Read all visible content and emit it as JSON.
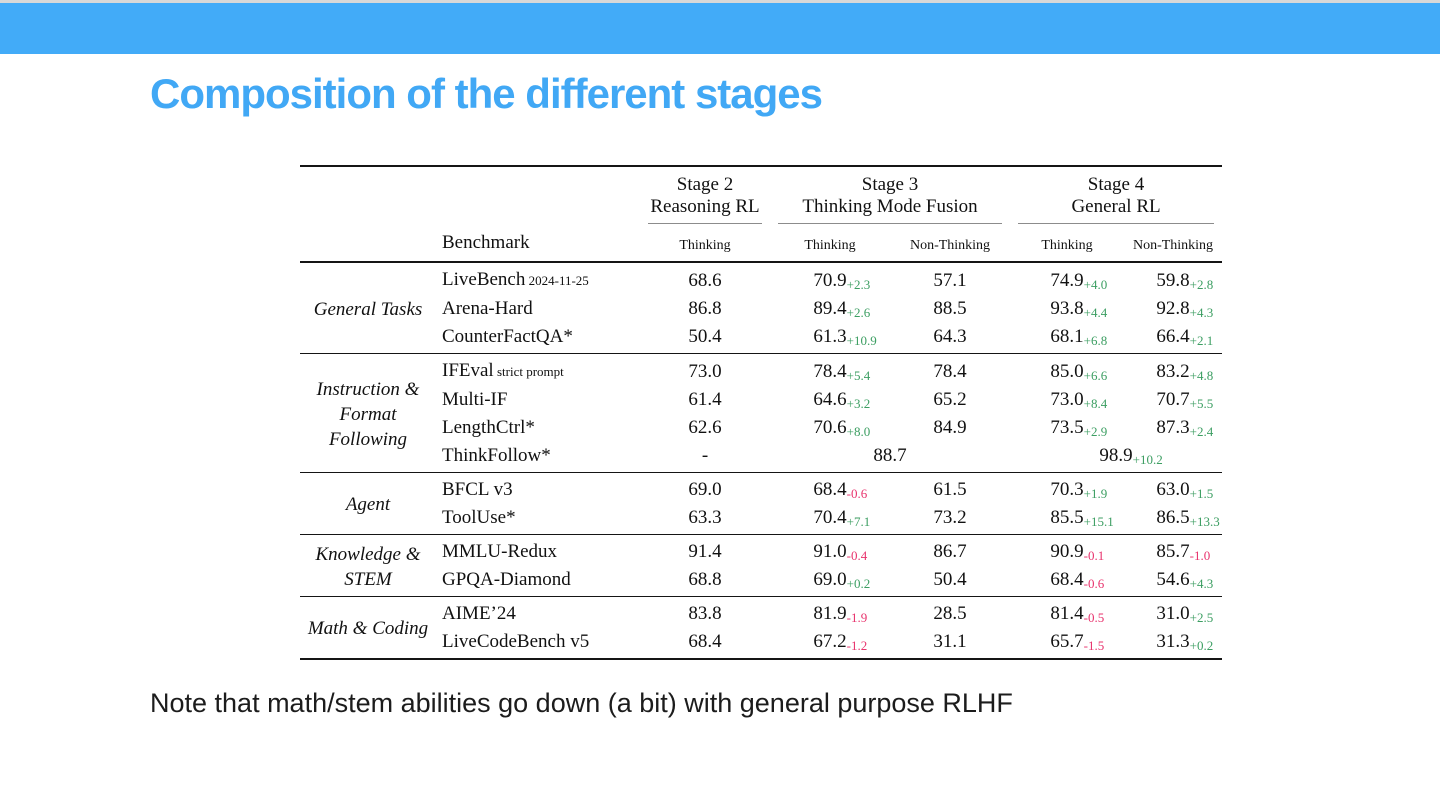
{
  "slide": {
    "title": "Composition of the different stages",
    "note": "Note that math/stem abilities go down (a bit) with general purpose RLHF"
  },
  "colors": {
    "accent_blue": "#41a8f5",
    "top_bar_blue": "#42abf8",
    "positive_delta": "#3c9e62",
    "negative_delta": "#e8336d"
  },
  "table": {
    "benchmark_header": "Benchmark",
    "stages": [
      {
        "line1": "Stage 2",
        "line2": "Reasoning RL",
        "cols": [
          "Thinking"
        ]
      },
      {
        "line1": "Stage 3",
        "line2": "Thinking Mode Fusion",
        "cols": [
          "Thinking",
          "Non-Thinking"
        ]
      },
      {
        "line1": "Stage 4",
        "line2": "General RL",
        "cols": [
          "Thinking",
          "Non-Thinking"
        ]
      }
    ],
    "groups": [
      {
        "label": "General Tasks",
        "rows": [
          {
            "benchmark": "LiveBench",
            "benchmark_sub": "2024-11-25",
            "cells": [
              {
                "v": "68.6"
              },
              {
                "v": "70.9",
                "d": "+2.3"
              },
              {
                "v": "57.1"
              },
              {
                "v": "74.9",
                "d": "+4.0"
              },
              {
                "v": "59.8",
                "d": "+2.8"
              }
            ]
          },
          {
            "benchmark": "Arena-Hard",
            "cells": [
              {
                "v": "86.8"
              },
              {
                "v": "89.4",
                "d": "+2.6"
              },
              {
                "v": "88.5"
              },
              {
                "v": "93.8",
                "d": "+4.4"
              },
              {
                "v": "92.8",
                "d": "+4.3"
              }
            ]
          },
          {
            "benchmark": "CounterFactQA*",
            "cells": [
              {
                "v": "50.4"
              },
              {
                "v": "61.3",
                "d": "+10.9"
              },
              {
                "v": "64.3"
              },
              {
                "v": "68.1",
                "d": "+6.8"
              },
              {
                "v": "66.4",
                "d": "+2.1"
              }
            ]
          }
        ]
      },
      {
        "label": "Instruction & Format Following",
        "rows": [
          {
            "benchmark": "IFEval",
            "benchmark_sub": "strict prompt",
            "cells": [
              {
                "v": "73.0"
              },
              {
                "v": "78.4",
                "d": "+5.4"
              },
              {
                "v": "78.4"
              },
              {
                "v": "85.0",
                "d": "+6.6"
              },
              {
                "v": "83.2",
                "d": "+4.8"
              }
            ]
          },
          {
            "benchmark": "Multi-IF",
            "cells": [
              {
                "v": "61.4"
              },
              {
                "v": "64.6",
                "d": "+3.2"
              },
              {
                "v": "65.2"
              },
              {
                "v": "73.0",
                "d": "+8.4"
              },
              {
                "v": "70.7",
                "d": "+5.5"
              }
            ]
          },
          {
            "benchmark": "LengthCtrl*",
            "cells": [
              {
                "v": "62.6"
              },
              {
                "v": "70.6",
                "d": "+8.0"
              },
              {
                "v": "84.9"
              },
              {
                "v": "73.5",
                "d": "+2.9"
              },
              {
                "v": "87.3",
                "d": "+2.4"
              }
            ]
          },
          {
            "benchmark": "ThinkFollow*",
            "cells": [
              {
                "v": "-"
              },
              {
                "v": "88.7",
                "span": 2
              },
              {
                "v": "98.9",
                "d": "+10.2",
                "span": 2
              }
            ]
          }
        ]
      },
      {
        "label": "Agent",
        "rows": [
          {
            "benchmark": "BFCL v3",
            "cells": [
              {
                "v": "69.0"
              },
              {
                "v": "68.4",
                "d": "-0.6"
              },
              {
                "v": "61.5"
              },
              {
                "v": "70.3",
                "d": "+1.9"
              },
              {
                "v": "63.0",
                "d": "+1.5"
              }
            ]
          },
          {
            "benchmark": "ToolUse*",
            "cells": [
              {
                "v": "63.3"
              },
              {
                "v": "70.4",
                "d": "+7.1"
              },
              {
                "v": "73.2"
              },
              {
                "v": "85.5",
                "d": "+15.1"
              },
              {
                "v": "86.5",
                "d": "+13.3"
              }
            ]
          }
        ]
      },
      {
        "label": "Knowledge & STEM",
        "rows": [
          {
            "benchmark": "MMLU-Redux",
            "cells": [
              {
                "v": "91.4"
              },
              {
                "v": "91.0",
                "d": "-0.4"
              },
              {
                "v": "86.7"
              },
              {
                "v": "90.9",
                "d": "-0.1"
              },
              {
                "v": "85.7",
                "d": "-1.0"
              }
            ]
          },
          {
            "benchmark": "GPQA-Diamond",
            "cells": [
              {
                "v": "68.8"
              },
              {
                "v": "69.0",
                "d": "+0.2"
              },
              {
                "v": "50.4"
              },
              {
                "v": "68.4",
                "d": "-0.6"
              },
              {
                "v": "54.6",
                "d": "+4.3"
              }
            ]
          }
        ]
      },
      {
        "label": "Math & Coding",
        "rows": [
          {
            "benchmark": "AIME’24",
            "cells": [
              {
                "v": "83.8"
              },
              {
                "v": "81.9",
                "d": "-1.9"
              },
              {
                "v": "28.5"
              },
              {
                "v": "81.4",
                "d": "-0.5"
              },
              {
                "v": "31.0",
                "d": "+2.5"
              }
            ]
          },
          {
            "benchmark": "LiveCodeBench v5",
            "cells": [
              {
                "v": "68.4"
              },
              {
                "v": "67.2",
                "d": "-1.2"
              },
              {
                "v": "31.1"
              },
              {
                "v": "65.7",
                "d": "-1.5"
              },
              {
                "v": "31.3",
                "d": "+0.2"
              }
            ]
          }
        ]
      }
    ]
  }
}
